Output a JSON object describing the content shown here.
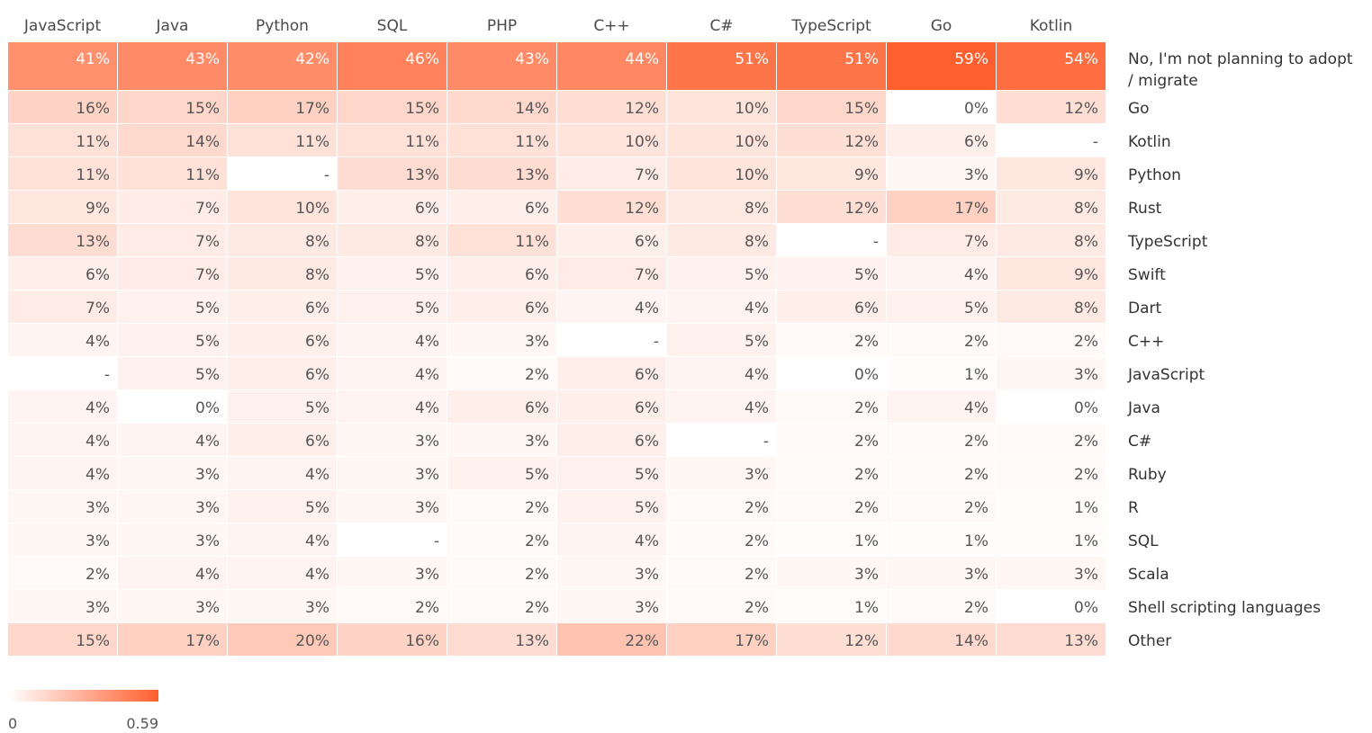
{
  "chart_data": {
    "type": "heatmap",
    "title": "",
    "columns": [
      "JavaScript",
      "Java",
      "Python",
      "SQL",
      "PHP",
      "C++",
      "C#",
      "TypeScript",
      "Go",
      "Kotlin"
    ],
    "rows": [
      {
        "label": "No, I'm not planning to adopt / migrate",
        "label_lines": [
          "No, I'm not planning to adopt",
          "/ migrate"
        ],
        "values": [
          41,
          43,
          42,
          46,
          43,
          44,
          51,
          51,
          59,
          54
        ]
      },
      {
        "label": "Go",
        "label_lines": [
          "Go"
        ],
        "values": [
          16,
          15,
          17,
          15,
          14,
          12,
          10,
          15,
          0,
          12
        ]
      },
      {
        "label": "Kotlin",
        "label_lines": [
          "Kotlin"
        ],
        "values": [
          11,
          14,
          11,
          11,
          11,
          10,
          10,
          12,
          6,
          null
        ]
      },
      {
        "label": "Python",
        "label_lines": [
          "Python"
        ],
        "values": [
          11,
          11,
          null,
          13,
          13,
          7,
          10,
          9,
          3,
          9
        ]
      },
      {
        "label": "Rust",
        "label_lines": [
          "Rust"
        ],
        "values": [
          9,
          7,
          10,
          6,
          6,
          12,
          8,
          12,
          17,
          8
        ]
      },
      {
        "label": "TypeScript",
        "label_lines": [
          "TypeScript"
        ],
        "values": [
          13,
          7,
          8,
          8,
          11,
          6,
          8,
          null,
          7,
          8
        ]
      },
      {
        "label": "Swift",
        "label_lines": [
          "Swift"
        ],
        "values": [
          6,
          7,
          8,
          5,
          6,
          7,
          5,
          5,
          4,
          9
        ]
      },
      {
        "label": "Dart",
        "label_lines": [
          "Dart"
        ],
        "values": [
          7,
          5,
          6,
          5,
          6,
          4,
          4,
          6,
          5,
          8
        ]
      },
      {
        "label": "C++",
        "label_lines": [
          "C++"
        ],
        "values": [
          4,
          5,
          6,
          4,
          3,
          null,
          5,
          2,
          2,
          2
        ]
      },
      {
        "label": "JavaScript",
        "label_lines": [
          "JavaScript"
        ],
        "values": [
          null,
          5,
          6,
          4,
          2,
          6,
          4,
          0,
          1,
          3
        ]
      },
      {
        "label": "Java",
        "label_lines": [
          "Java"
        ],
        "values": [
          4,
          0,
          5,
          4,
          6,
          6,
          4,
          2,
          4,
          0
        ]
      },
      {
        "label": "C#",
        "label_lines": [
          "C#"
        ],
        "values": [
          4,
          4,
          6,
          3,
          3,
          6,
          null,
          2,
          2,
          2
        ]
      },
      {
        "label": "Ruby",
        "label_lines": [
          "Ruby"
        ],
        "values": [
          4,
          3,
          4,
          3,
          5,
          5,
          3,
          2,
          2,
          2
        ]
      },
      {
        "label": "R",
        "label_lines": [
          "R"
        ],
        "values": [
          3,
          3,
          5,
          3,
          2,
          5,
          2,
          2,
          2,
          1
        ]
      },
      {
        "label": "SQL",
        "label_lines": [
          "SQL"
        ],
        "values": [
          3,
          3,
          4,
          null,
          2,
          4,
          2,
          1,
          1,
          1
        ]
      },
      {
        "label": "Scala",
        "label_lines": [
          "Scala"
        ],
        "values": [
          2,
          4,
          4,
          3,
          2,
          3,
          2,
          3,
          3,
          3
        ]
      },
      {
        "label": "Shell scripting languages",
        "label_lines": [
          "Shell scripting languages"
        ],
        "values": [
          3,
          3,
          3,
          2,
          2,
          3,
          2,
          1,
          2,
          0
        ]
      },
      {
        "label": "Other",
        "label_lines": [
          "Other"
        ],
        "values": [
          15,
          17,
          20,
          16,
          13,
          22,
          17,
          12,
          14,
          13
        ]
      }
    ],
    "value_suffix": "%",
    "missing_text": "-",
    "color_scale": {
      "min": 0,
      "max": 0.59,
      "min_label": "0",
      "max_label": "0.59",
      "low_color": "#ffffff",
      "high_color": "#ff5f2e"
    },
    "legend_position": "bottom-left"
  }
}
